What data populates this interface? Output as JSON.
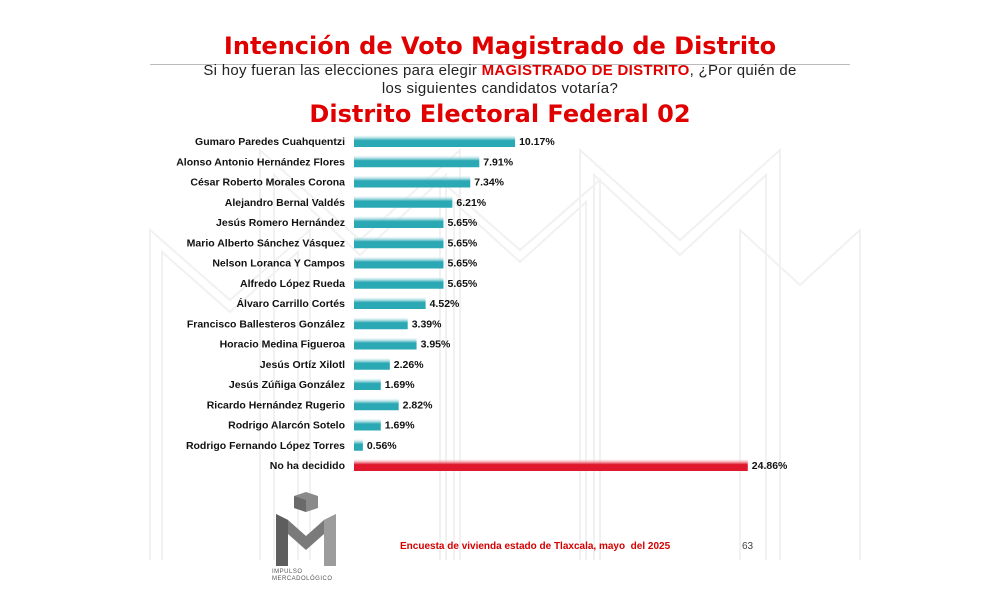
{
  "header": {
    "title": "Intención de Voto Magistrado de Distrito",
    "question_pre": "Si hoy fueran las elecciones para elegir ",
    "question_highlight": "MAGISTRADO DE DISTRITO",
    "question_line1_post": ", ¿Por quién de",
    "question_line2": "los siguientes candidatos votaría?",
    "district": "Distrito Electoral Federal 02"
  },
  "colors": {
    "title": "#e00000",
    "bar_primary": "#2aa8b4",
    "bar_undecided": "#e0182d",
    "footer": "#d40000"
  },
  "chart_data": {
    "type": "bar",
    "orientation": "horizontal",
    "categories": [
      "Gumaro Paredes Cuahquentzi",
      "Alonso Antonio Hernández Flores",
      "César Roberto Morales Corona",
      "Alejandro Bernal Valdés",
      "Jesús Romero Hernández",
      "Mario Alberto Sánchez Vásquez",
      "Nelson Loranca Y Campos",
      "Alfredo López Rueda",
      "Álvaro Carrillo Cortés",
      "Francisco Ballesteros González",
      "Horacio Medina Figueroa",
      "Jesús Ortíz Xilotl",
      "Jesús Zúñiga González",
      "Ricardo Hernández Rugerio",
      "Rodrigo Alarcón Sotelo",
      "Rodrigo Fernando López Torres",
      "No ha decidido"
    ],
    "values": [
      10.17,
      7.91,
      7.34,
      6.21,
      5.65,
      5.65,
      5.65,
      5.65,
      4.52,
      3.39,
      3.95,
      2.26,
      1.69,
      2.82,
      1.69,
      0.56,
      24.86
    ],
    "labels": [
      "10.17%",
      "7.91%",
      "7.34%",
      "6.21%",
      "5.65%",
      "5.65%",
      "5.65%",
      "5.65%",
      "4.52%",
      "3.39%",
      "3.95%",
      "2.26%",
      "1.69%",
      "2.82%",
      "1.69%",
      "0.56%",
      "24.86%"
    ],
    "highlight_index": 16,
    "xlim": [
      0,
      25
    ],
    "grid": false,
    "legend": "none"
  },
  "footer": {
    "source": "Encuesta de vivienda estado de Tlaxcala, mayo  del 2025",
    "page": "63"
  },
  "logo": {
    "caption_line1": "IMPULSO",
    "caption_line2": "MERCADOLÓGICO"
  }
}
